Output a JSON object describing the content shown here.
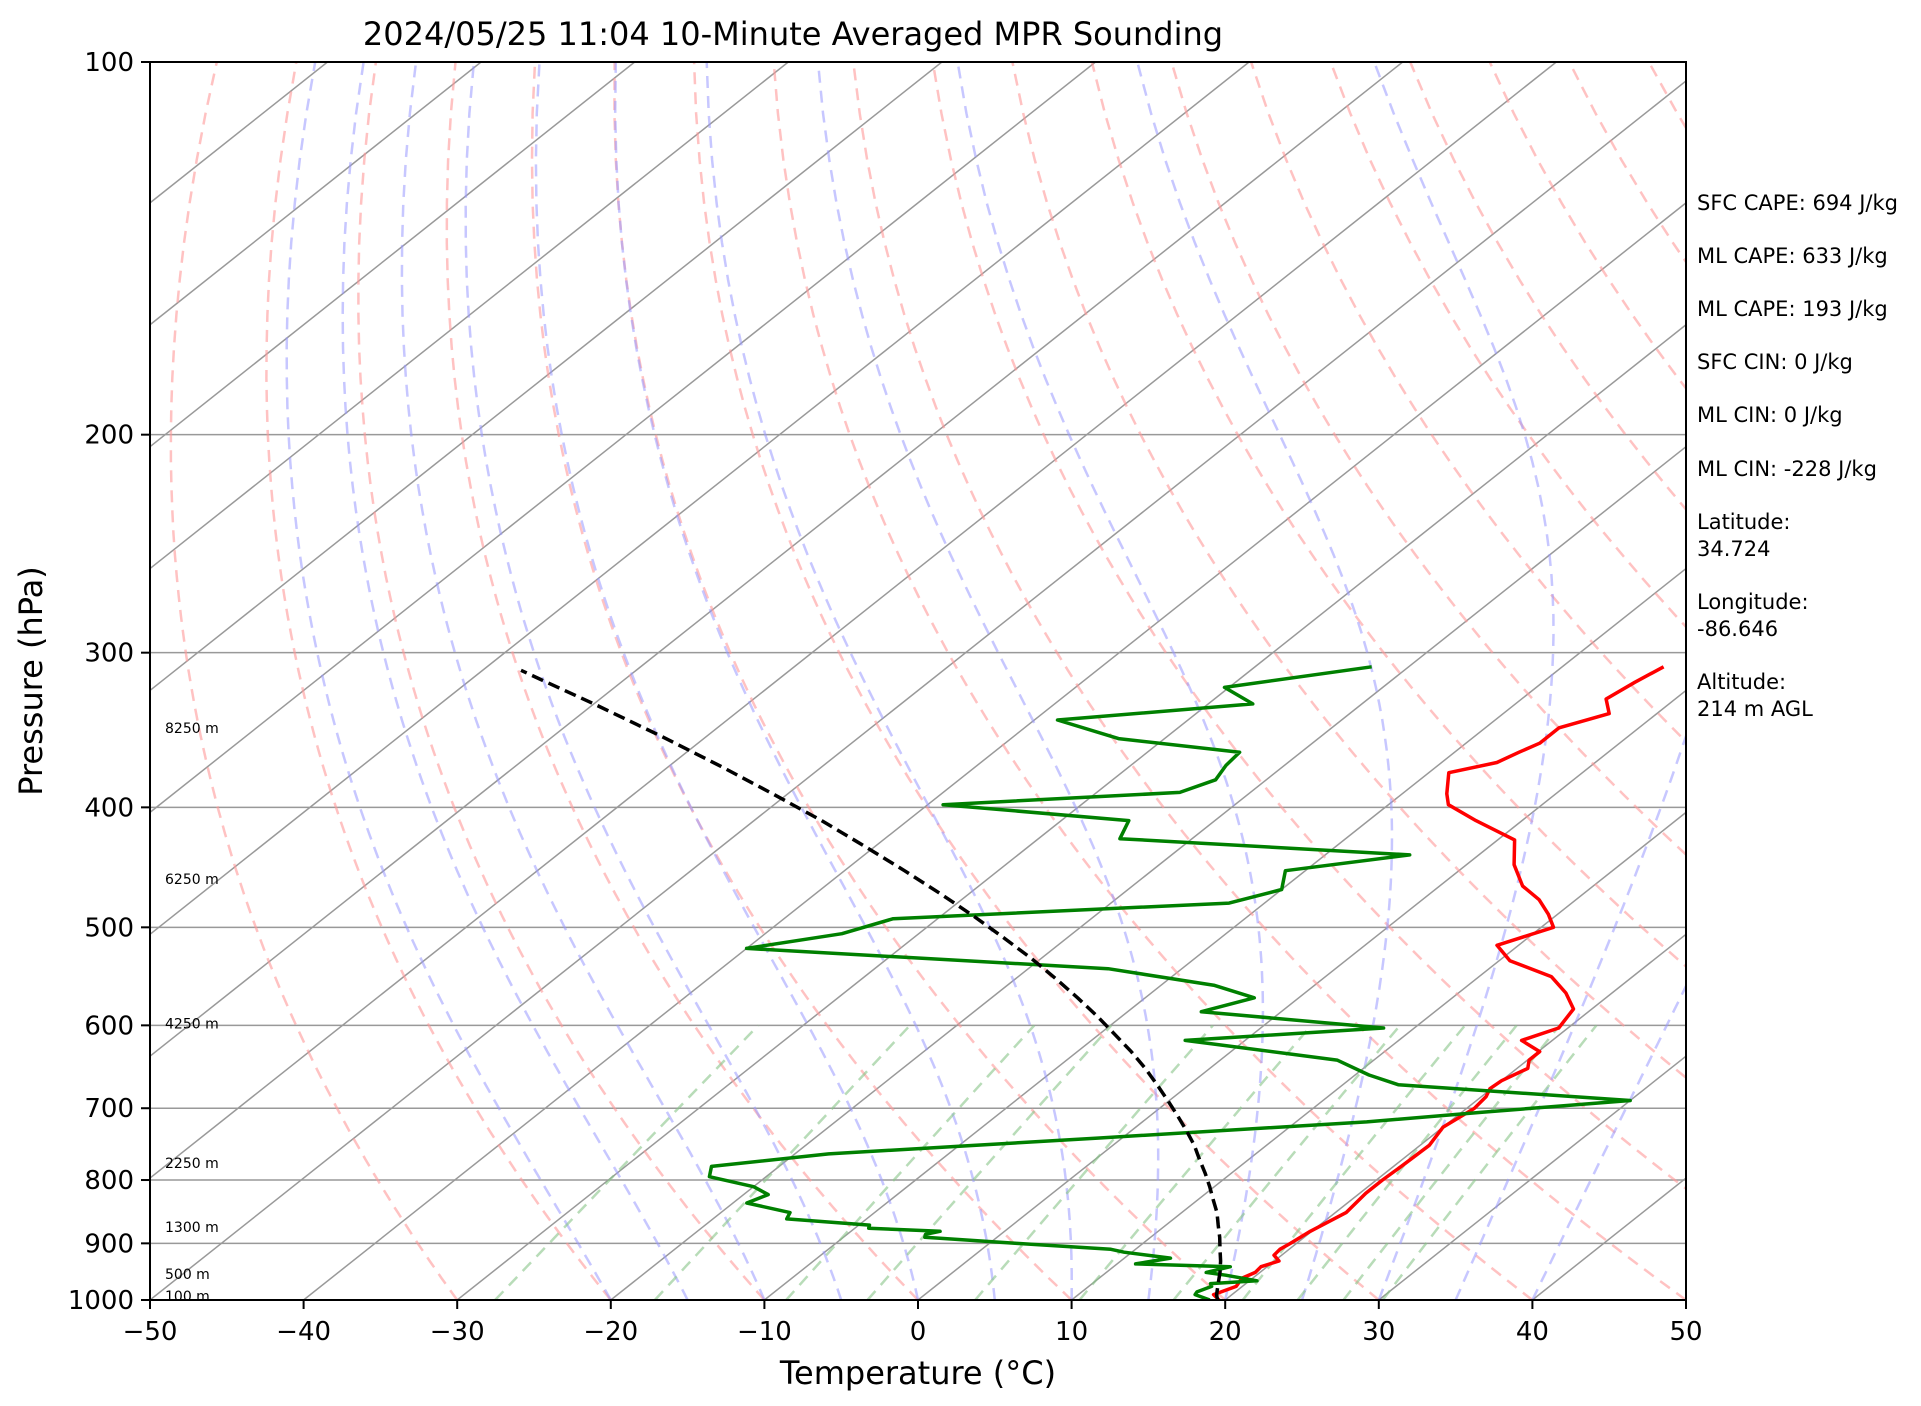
{
  "chart_data": {
    "type": "line",
    "title": "2024/05/25 11:04 10-Minute Averaged MPR Sounding",
    "xlabel": "Temperature (°C)",
    "ylabel": "Pressure (hPa)",
    "xlim": [
      -50,
      50
    ],
    "ylim": [
      1000,
      100
    ],
    "y_scale": "log",
    "skew": true,
    "x_ticks": [
      "−50",
      "−40",
      "−30",
      "−20",
      "−10",
      "0",
      "10",
      "20",
      "30",
      "40",
      "50"
    ],
    "x_tick_values": [
      -50,
      -40,
      -30,
      -20,
      -10,
      0,
      10,
      20,
      30,
      40,
      50
    ],
    "y_ticks": [
      "100",
      "200",
      "300",
      "400",
      "500",
      "600",
      "700",
      "800",
      "900",
      "1000"
    ],
    "y_tick_values": [
      100,
      200,
      300,
      400,
      500,
      600,
      700,
      800,
      900,
      1000
    ],
    "grid": true,
    "height_labels": [
      {
        "text": "8250 m",
        "p": 345
      },
      {
        "text": "6250 m",
        "p": 457
      },
      {
        "text": "4250 m",
        "p": 598
      },
      {
        "text": "2250 m",
        "p": 775
      },
      {
        "text": "1300 m",
        "p": 873
      },
      {
        "text": "500 m",
        "p": 953
      },
      {
        "text": "100 m",
        "p": 993
      }
    ],
    "series": [
      {
        "color": "#ff0000",
        "points": [
          [
            19.6,
            1000
          ],
          [
            18.8,
            990
          ],
          [
            19.6,
            975
          ],
          [
            19.3,
            960
          ],
          [
            19.7,
            950
          ],
          [
            19.6,
            940
          ],
          [
            20.3,
            930
          ],
          [
            19.5,
            920
          ],
          [
            19.4,
            910
          ],
          [
            19.6,
            900
          ],
          [
            19.9,
            880
          ],
          [
            20.7,
            850
          ],
          [
            20.4,
            820
          ],
          [
            20.4,
            800
          ],
          [
            20.5,
            780
          ],
          [
            20.6,
            750
          ],
          [
            20.0,
            725
          ],
          [
            20.5,
            700
          ],
          [
            20.3,
            685
          ],
          [
            19.9,
            675
          ],
          [
            20.0,
            665
          ],
          [
            20.7,
            650
          ],
          [
            20.1,
            640
          ],
          [
            20.1,
            630
          ],
          [
            18.0,
            617
          ],
          [
            19.4,
            603
          ],
          [
            18.8,
            582
          ],
          [
            17.0,
            565
          ],
          [
            14.7,
            548
          ],
          [
            10.7,
            532
          ],
          [
            8.6,
            517
          ],
          [
            10.8,
            500
          ],
          [
            9.4,
            488
          ],
          [
            7.6,
            475
          ],
          [
            5.4,
            463
          ],
          [
            3.1,
            445
          ],
          [
            1.1,
            425
          ],
          [
            -3.0,
            410
          ],
          [
            -6.1,
            398
          ],
          [
            -7.1,
            390
          ],
          [
            -8.7,
            375
          ],
          [
            -6.4,
            368
          ],
          [
            -5.8,
            361
          ],
          [
            -5.2,
            355
          ],
          [
            -5.2,
            345
          ],
          [
            -3.1,
            336
          ],
          [
            -4.5,
            327
          ],
          [
            -4.0,
            317
          ],
          [
            -3.4,
            308
          ]
        ]
      },
      {
        "color": "#008000",
        "points": [
          [
            19.0,
            1000
          ],
          [
            17.6,
            990
          ],
          [
            17.5,
            985
          ],
          [
            18.0,
            975
          ],
          [
            17.7,
            970
          ],
          [
            20.5,
            965
          ],
          [
            18.0,
            955
          ],
          [
            16.5,
            950
          ],
          [
            17.6,
            940
          ],
          [
            11.2,
            935
          ],
          [
            13.0,
            925
          ],
          [
            9.5,
            915
          ],
          [
            8.4,
            910
          ],
          [
            1.8,
            900
          ],
          [
            -4.7,
            890
          ],
          [
            -4.9,
            885
          ],
          [
            -4.2,
            880
          ],
          [
            -9.1,
            875
          ],
          [
            -9.3,
            870
          ],
          [
            -15.2,
            860
          ],
          [
            -15.5,
            850
          ],
          [
            -19.1,
            835
          ],
          [
            -18.4,
            822
          ],
          [
            -20.0,
            810
          ],
          [
            -23.7,
            795
          ],
          [
            -24.4,
            780
          ],
          [
            -17.8,
            762
          ],
          [
            -1.6,
            740
          ],
          [
            14.6,
            718
          ],
          [
            21.4,
            705
          ],
          [
            30.0,
            690
          ],
          [
            13.6,
            670
          ],
          [
            10.9,
            658
          ],
          [
            7.6,
            640
          ],
          [
            -3.9,
            617
          ],
          [
            8.0,
            603
          ],
          [
            -5.2,
            585
          ],
          [
            -2.9,
            570
          ],
          [
            -6.5,
            557
          ],
          [
            -14.8,
            540
          ],
          [
            -40.0,
            520
          ],
          [
            -35.0,
            506
          ],
          [
            -32.9,
            492
          ],
          [
            -12.3,
            478
          ],
          [
            -10.0,
            466
          ],
          [
            -11.3,
            450
          ],
          [
            -4.5,
            437
          ],
          [
            -24.7,
            424
          ],
          [
            -25.6,
            410
          ],
          [
            -39.0,
            398
          ],
          [
            -24.6,
            389
          ],
          [
            -23.3,
            380
          ],
          [
            -23.8,
            370
          ],
          [
            -24.0,
            361
          ],
          [
            -33.0,
            352
          ],
          [
            -38.5,
            340
          ],
          [
            -27.1,
            330
          ],
          [
            -30.3,
            320
          ],
          [
            -22.4,
            308
          ]
        ]
      },
      {
        "color": "#000000",
        "dashed": true,
        "points": [
          [
            19.5,
            1000
          ],
          [
            19.0,
            990
          ],
          [
            18.2,
            970
          ],
          [
            17.4,
            950
          ],
          [
            16.5,
            930
          ],
          [
            15.5,
            910
          ],
          [
            14.5,
            890
          ],
          [
            13.4,
            870
          ],
          [
            12.3,
            850
          ],
          [
            11.0,
            830
          ],
          [
            9.7,
            810
          ],
          [
            8.3,
            790
          ],
          [
            6.8,
            770
          ],
          [
            5.3,
            750
          ],
          [
            3.6,
            730
          ],
          [
            1.8,
            710
          ],
          [
            -0.1,
            690
          ],
          [
            -2.1,
            670
          ],
          [
            -4.2,
            650
          ],
          [
            -6.5,
            630
          ],
          [
            -9.0,
            610
          ],
          [
            -11.6,
            590
          ],
          [
            -14.4,
            570
          ],
          [
            -17.4,
            550
          ],
          [
            -20.6,
            530
          ],
          [
            -24.1,
            510
          ],
          [
            -27.8,
            490
          ],
          [
            -31.8,
            470
          ],
          [
            -36.1,
            450
          ],
          [
            -40.7,
            430
          ],
          [
            -45.6,
            410
          ],
          [
            -51.0,
            390
          ],
          [
            -56.8,
            370
          ],
          [
            -63.1,
            350
          ],
          [
            -70.0,
            330
          ],
          [
            -75.6,
            315
          ],
          [
            -77.5,
            310
          ]
        ]
      }
    ]
  },
  "info_panel": [
    "SFC CAPE: 694 J/kg",
    "ML CAPE: 633 J/kg",
    "ML CAPE: 193 J/kg",
    "SFC CIN: 0 J/kg",
    "ML CIN: 0 J/kg",
    "ML CIN: -228 J/kg",
    "Latitude:",
    "34.724",
    "Longitude:",
    "-86.646",
    "Altitude:",
    "214 m AGL"
  ],
  "colors": {
    "temperature": "#ff0000",
    "dewpoint": "#008000",
    "parcel": "#000000",
    "dry_adiabat": "#ff9999",
    "moist_adiabat": "#9999ff",
    "mixing_ratio": "#88c488",
    "isotherm": "#999999"
  }
}
